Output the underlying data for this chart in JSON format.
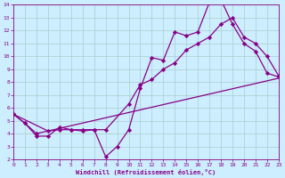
{
  "title": "",
  "xlabel": "Windchill (Refroidissement éolien,°C)",
  "ylabel": "",
  "bg_color": "#cceeff",
  "line_color": "#880088",
  "grid_color": "#aacccc",
  "xlim": [
    0,
    23
  ],
  "ylim": [
    2,
    14
  ],
  "xticks": [
    0,
    1,
    2,
    3,
    4,
    5,
    6,
    7,
    8,
    9,
    10,
    11,
    12,
    13,
    14,
    15,
    16,
    17,
    18,
    19,
    20,
    21,
    22,
    23
  ],
  "yticks": [
    2,
    3,
    4,
    5,
    6,
    7,
    8,
    9,
    10,
    11,
    12,
    13,
    14
  ],
  "line1_x": [
    0,
    1,
    2,
    3,
    4,
    5,
    6,
    7,
    8,
    9,
    10,
    11,
    12,
    13,
    14,
    15,
    16,
    17,
    18,
    19,
    20,
    21,
    22,
    23
  ],
  "line1_y": [
    5.5,
    4.8,
    3.8,
    3.8,
    4.5,
    4.3,
    4.2,
    4.3,
    2.2,
    3.0,
    4.3,
    7.5,
    9.9,
    9.7,
    11.9,
    11.6,
    11.9,
    14.2,
    14.4,
    12.5,
    11.0,
    10.4,
    8.7,
    8.4
  ],
  "line2_x": [
    0,
    1,
    2,
    3,
    4,
    5,
    6,
    7,
    8,
    10,
    11,
    12,
    13,
    14,
    15,
    16,
    17,
    18,
    19,
    20,
    21,
    22,
    23
  ],
  "line2_y": [
    5.5,
    4.8,
    4.0,
    4.2,
    4.3,
    4.3,
    4.3,
    4.3,
    4.3,
    6.3,
    7.8,
    8.2,
    9.0,
    9.5,
    10.5,
    11.0,
    11.5,
    12.5,
    13.0,
    11.5,
    11.0,
    10.0,
    8.5
  ],
  "line3_x": [
    0,
    3,
    23
  ],
  "line3_y": [
    5.5,
    4.2,
    8.3
  ],
  "marker": "D",
  "markersize": 2.2,
  "linewidth": 0.9
}
